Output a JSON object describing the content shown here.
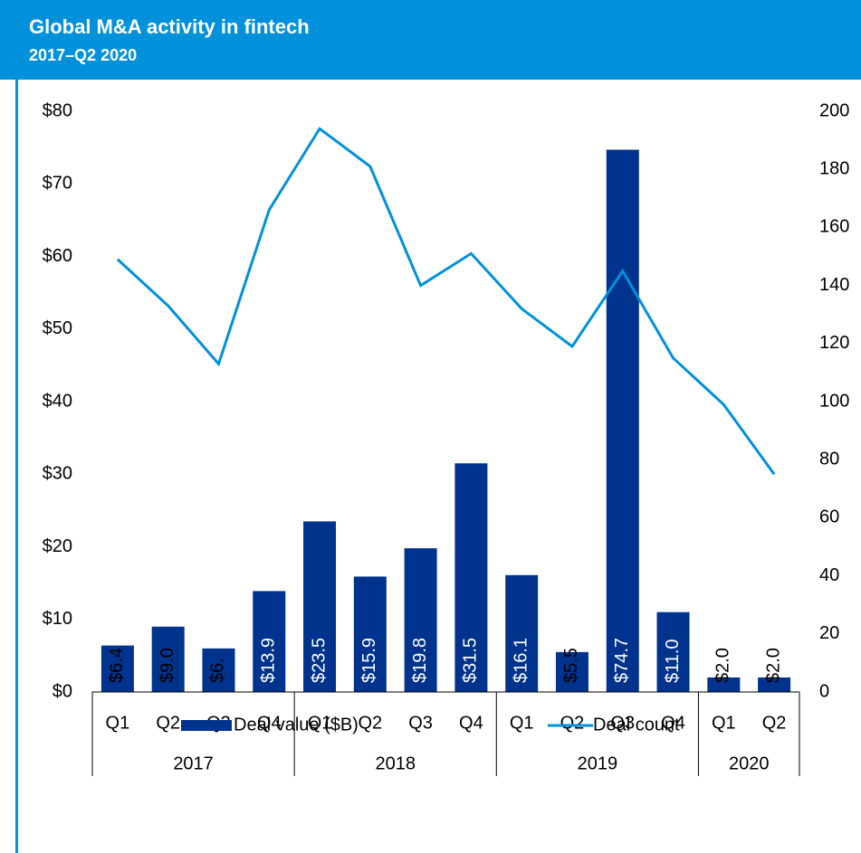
{
  "chart_data": {
    "type": "bar_line",
    "title": "Global M&A activity in fintech",
    "subtitle": "2017–Q2 2020",
    "groups": [
      {
        "name": "2017",
        "categories": [
          "Q1",
          "Q2",
          "Q3",
          "Q4"
        ]
      },
      {
        "name": "2018",
        "categories": [
          "Q1",
          "Q2",
          "Q3",
          "Q4"
        ]
      },
      {
        "name": "2019",
        "categories": [
          "Q1",
          "Q2",
          "Q3",
          "Q4"
        ]
      },
      {
        "name": "2020",
        "categories": [
          "Q1",
          "Q2"
        ]
      }
    ],
    "series": [
      {
        "name": "Deal value ($B)",
        "type": "bar",
        "color": "#00338d",
        "values": [
          6.4,
          9.0,
          6.0,
          13.9,
          23.5,
          15.9,
          19.8,
          31.5,
          16.1,
          5.5,
          74.7,
          11.0,
          2.0,
          2.0
        ],
        "value_labels": [
          "$6.4",
          "$9.0",
          "$6.",
          "$13.9",
          "$23.5",
          "$15.9",
          "$19.8",
          "$31.5",
          "$16.1",
          "$5.5",
          "$74.7",
          "$11.0",
          "$2.0",
          "$2.0"
        ]
      },
      {
        "name": "Deal count",
        "type": "line",
        "axis": "y2",
        "color": "#0091da",
        "values": [
          149,
          133,
          113,
          166,
          194,
          181,
          140,
          151,
          132,
          119,
          145,
          115,
          99,
          75
        ]
      }
    ],
    "ylim": [
      0,
      80
    ],
    "yticks": [
      {
        "value": 0,
        "label": "$0"
      },
      {
        "value": 10,
        "label": "$10"
      },
      {
        "value": 20,
        "label": "$20"
      },
      {
        "value": 30,
        "label": "$30"
      },
      {
        "value": 40,
        "label": "$40"
      },
      {
        "value": 50,
        "label": "$50"
      },
      {
        "value": 60,
        "label": "$60"
      },
      {
        "value": 70,
        "label": "$70"
      },
      {
        "value": 80,
        "label": "$80"
      }
    ],
    "y2lim": [
      0,
      200
    ],
    "y2ticks": [
      0,
      20,
      40,
      60,
      80,
      100,
      120,
      140,
      160,
      180,
      200
    ],
    "grid": false,
    "legend": "bottom"
  }
}
